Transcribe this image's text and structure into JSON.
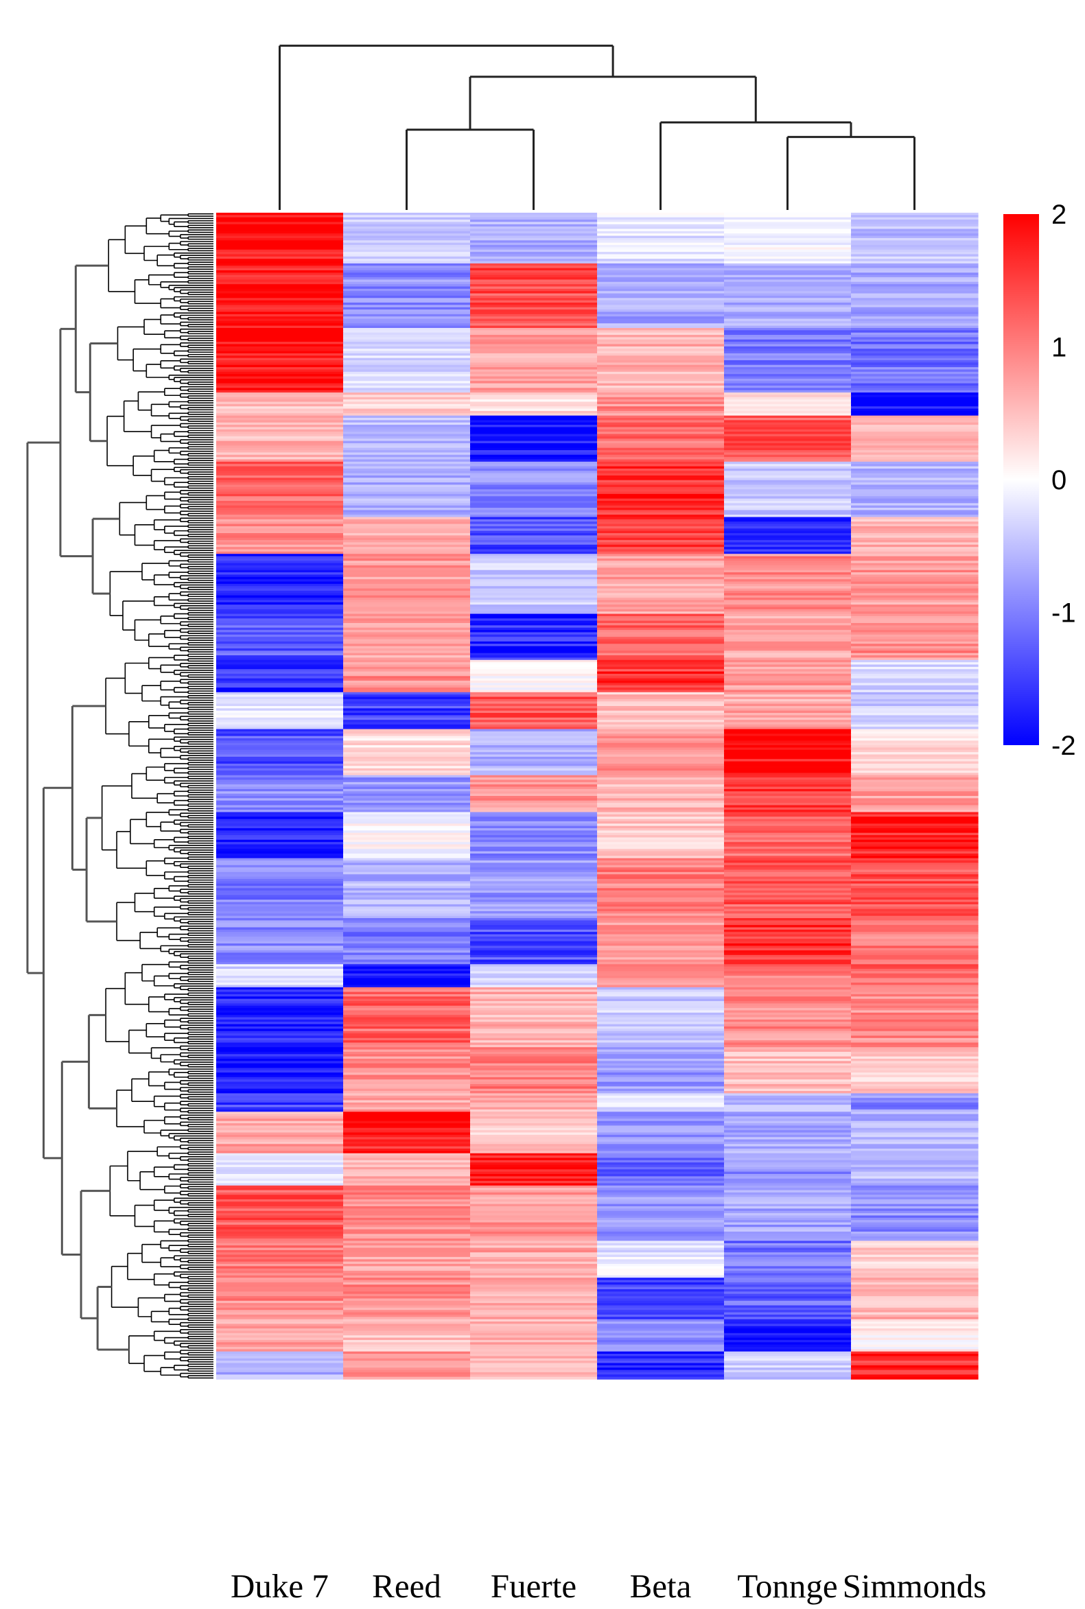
{
  "chart_data": {
    "type": "heatmap",
    "title": "",
    "xlabel": "",
    "ylabel": "",
    "columns": [
      "Duke 7",
      "Reed",
      "Fuerte",
      "Beta",
      "Tonnge",
      "Simmonds"
    ],
    "colorbar": {
      "min": -2,
      "max": 2,
      "ticks": [
        2,
        1,
        0,
        -1,
        -2
      ],
      "tick_labels": [
        "2",
        "1",
        "0",
        "-1",
        "-2"
      ],
      "colors": {
        "low": "#0000ff",
        "mid": "#ffffff",
        "high": "#ff0000"
      }
    },
    "column_dendrogram": {
      "leaf_order": [
        "Duke 7",
        "Reed",
        "Fuerte",
        "Beta",
        "Tonnge",
        "Simmonds"
      ],
      "merges": [
        {
          "members": [
            "Tonnge",
            "Simmonds"
          ],
          "height": 0.4
        },
        {
          "members": [
            "Beta",
            "Tonnge",
            "Simmonds"
          ],
          "height": 0.48
        },
        {
          "members": [
            "Reed",
            "Fuerte"
          ],
          "height": 0.44
        },
        {
          "members": [
            "Reed",
            "Fuerte",
            "Beta",
            "Tonnge",
            "Simmonds"
          ],
          "height": 0.73
        },
        {
          "members": [
            "Duke 7",
            "Reed",
            "Fuerte",
            "Beta",
            "Tonnge",
            "Simmonds"
          ],
          "height": 0.9
        }
      ]
    },
    "row_blocks": [
      {
        "rows": 22,
        "values": [
          1.9,
          -0.4,
          -0.6,
          -0.2,
          -0.1,
          -0.5
        ]
      },
      {
        "rows": 28,
        "values": [
          1.8,
          -0.9,
          1.4,
          -0.7,
          -0.6,
          -0.7
        ]
      },
      {
        "rows": 28,
        "values": [
          1.9,
          -0.3,
          0.7,
          0.6,
          -1.0,
          -1.1
        ]
      },
      {
        "rows": 10,
        "values": [
          0.5,
          0.4,
          0.3,
          0.9,
          0.2,
          -1.9
        ]
      },
      {
        "rows": 20,
        "values": [
          0.6,
          -0.5,
          -1.9,
          1.1,
          1.3,
          0.5
        ]
      },
      {
        "rows": 24,
        "values": [
          1.2,
          -0.6,
          -0.9,
          1.7,
          -0.4,
          -0.6
        ]
      },
      {
        "rows": 16,
        "values": [
          0.9,
          0.6,
          -1.4,
          1.6,
          -1.6,
          0.6
        ]
      },
      {
        "rows": 26,
        "values": [
          -1.8,
          0.8,
          -0.4,
          0.7,
          0.9,
          0.8
        ]
      },
      {
        "rows": 20,
        "values": [
          -1.3,
          0.7,
          -1.7,
          1.2,
          0.7,
          0.9
        ]
      },
      {
        "rows": 14,
        "values": [
          -1.6,
          0.9,
          0.0,
          1.6,
          0.8,
          -0.3
        ]
      },
      {
        "rows": 16,
        "values": [
          -0.2,
          -1.5,
          1.3,
          0.5,
          0.7,
          -0.4
        ]
      },
      {
        "rows": 20,
        "values": [
          -1.4,
          0.3,
          -0.6,
          0.9,
          1.9,
          0.3
        ]
      },
      {
        "rows": 16,
        "values": [
          -0.9,
          -0.8,
          0.8,
          0.6,
          1.5,
          0.8
        ]
      },
      {
        "rows": 20,
        "values": [
          -1.8,
          0.0,
          -0.9,
          0.4,
          1.2,
          1.8
        ]
      },
      {
        "rows": 26,
        "values": [
          -1.0,
          -0.6,
          -0.8,
          1.0,
          1.3,
          1.4
        ]
      },
      {
        "rows": 20,
        "values": [
          -0.9,
          -1.0,
          -1.4,
          0.8,
          1.6,
          1.0
        ]
      },
      {
        "rows": 10,
        "values": [
          -0.3,
          -1.9,
          -0.3,
          0.9,
          1.1,
          1.2
        ]
      },
      {
        "rows": 26,
        "values": [
          -1.7,
          1.2,
          0.6,
          -0.4,
          0.9,
          0.9
        ]
      },
      {
        "rows": 20,
        "values": [
          -1.9,
          0.9,
          1.0,
          -0.8,
          0.5,
          0.4
        ]
      },
      {
        "rows": 8,
        "values": [
          -1.5,
          0.7,
          0.6,
          -0.2,
          -0.6,
          -0.9
        ]
      },
      {
        "rows": 18,
        "values": [
          0.7,
          1.8,
          0.4,
          -0.9,
          -0.7,
          -0.6
        ]
      },
      {
        "rows": 14,
        "values": [
          -0.3,
          0.6,
          1.9,
          -1.2,
          -0.9,
          -0.5
        ]
      },
      {
        "rows": 24,
        "values": [
          1.3,
          0.9,
          0.8,
          -0.8,
          -0.7,
          -0.9
        ]
      },
      {
        "rows": 16,
        "values": [
          1.0,
          0.7,
          0.7,
          -0.2,
          -1.1,
          0.4
        ]
      },
      {
        "rows": 18,
        "values": [
          0.9,
          0.9,
          0.6,
          -1.5,
          -1.2,
          0.6
        ]
      },
      {
        "rows": 14,
        "values": [
          0.7,
          0.5,
          0.6,
          -0.9,
          -1.9,
          0.1
        ]
      },
      {
        "rows": 12,
        "values": [
          -0.6,
          0.8,
          0.5,
          -1.7,
          -0.4,
          1.7
        ]
      }
    ]
  }
}
